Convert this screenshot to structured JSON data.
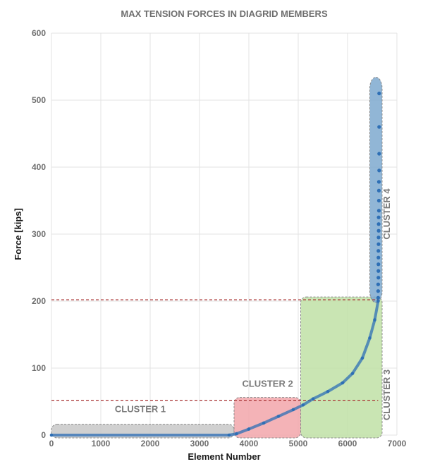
{
  "chart_data": {
    "type": "scatter",
    "title": "MAX TENSION FORCES IN DIAGRID MEMBERS",
    "xlabel": "Element Number",
    "ylabel": "Force [kips]",
    "xlim": [
      0,
      7000
    ],
    "ylim": [
      0,
      600
    ],
    "x_ticks": [
      "0",
      "1000",
      "2000",
      "3000",
      "4000",
      "5000",
      "6000",
      "7000"
    ],
    "y_ticks": [
      "0",
      "100",
      "200",
      "300",
      "400",
      "500",
      "600"
    ],
    "grid": true,
    "series_color": "#2e6fb5",
    "reference_lines_y": [
      52,
      202
    ],
    "reference_line_color": "#a83232",
    "clusters": [
      {
        "label": "CLUSTER 1",
        "x_range": [
          0,
          3700
        ],
        "y_range": [
          0,
          12
        ],
        "color": "#c8c8c8"
      },
      {
        "label": "CLUSTER 2",
        "x_range": [
          3700,
          5050
        ],
        "y_range": [
          0,
          52
        ],
        "color": "#f2a6aa"
      },
      {
        "label": "CLUSTER 3",
        "x_range": [
          5050,
          6700
        ],
        "y_range": [
          0,
          202
        ],
        "color": "#bfe0a6"
      },
      {
        "label": "CLUSTER 4",
        "x_range": [
          6450,
          6700
        ],
        "y_range": [
          202,
          530
        ],
        "color": "#7ea9cf"
      }
    ],
    "curve_points": [
      [
        0,
        0
      ],
      [
        3600,
        0
      ],
      [
        3750,
        2
      ],
      [
        4000,
        9
      ],
      [
        4300,
        18
      ],
      [
        4600,
        28
      ],
      [
        4900,
        38
      ],
      [
        5100,
        45
      ],
      [
        5300,
        54
      ],
      [
        5600,
        65
      ],
      [
        5900,
        78
      ],
      [
        6100,
        92
      ],
      [
        6300,
        115
      ],
      [
        6450,
        145
      ],
      [
        6550,
        172
      ],
      [
        6620,
        200
      ]
    ],
    "top_points": [
      [
        6620,
        205
      ],
      [
        6620,
        215
      ],
      [
        6620,
        225
      ],
      [
        6625,
        235
      ],
      [
        6625,
        245
      ],
      [
        6625,
        255
      ],
      [
        6625,
        265
      ],
      [
        6625,
        275
      ],
      [
        6628,
        285
      ],
      [
        6628,
        295
      ],
      [
        6630,
        305
      ],
      [
        6630,
        315
      ],
      [
        6630,
        325
      ],
      [
        6635,
        335
      ],
      [
        6635,
        350
      ],
      [
        6635,
        365
      ],
      [
        6635,
        378
      ],
      [
        6640,
        395
      ],
      [
        6640,
        420
      ],
      [
        6640,
        460
      ],
      [
        6640,
        510
      ]
    ]
  }
}
